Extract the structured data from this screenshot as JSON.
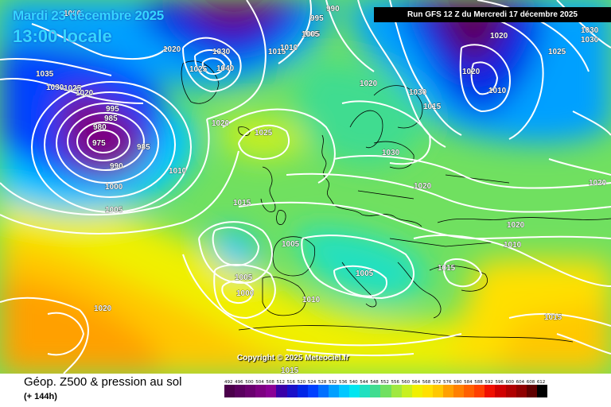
{
  "header": {
    "date_line": "Mardi 23 décembre 2025",
    "time_line": "13:00 locale",
    "run_info": "Run GFS 12 Z du Mercredi 17 décembre 2025"
  },
  "copyright": "Copyright © 2025 Meteociel.fr",
  "footer": {
    "title": "Géop. Z500 & pression au sol",
    "subtitle": "(+ 144h)"
  },
  "color_scale": {
    "labels": [
      "492",
      "496",
      "500",
      "504",
      "508",
      "512",
      "516",
      "520",
      "524",
      "528",
      "532",
      "536",
      "540",
      "544",
      "548",
      "552",
      "556",
      "560",
      "564",
      "568",
      "572",
      "576",
      "580",
      "584",
      "588",
      "592",
      "596",
      "600",
      "604",
      "608",
      "612"
    ],
    "colors": [
      "#4b004b",
      "#5a005f",
      "#6a006f",
      "#7d0082",
      "#8a0096",
      "#3a00a8",
      "#1a10c8",
      "#0025e6",
      "#0040ff",
      "#0070ff",
      "#00a0ff",
      "#00c8ff",
      "#00e6f0",
      "#20e0c0",
      "#40dc90",
      "#70e060",
      "#a0e840",
      "#c8f020",
      "#f0f000",
      "#ffe000",
      "#ffc800",
      "#ffa000",
      "#ff8000",
      "#ff6000",
      "#ff4000",
      "#f01000",
      "#d00000",
      "#b00000",
      "#900000",
      "#600000",
      "#000000"
    ]
  },
  "isobar_labels": [
    "1000",
    "995",
    "990",
    "1005",
    "1035",
    "1030",
    "1025",
    "1020",
    "995",
    "985",
    "980",
    "975",
    "985",
    "990",
    "1000",
    "1005",
    "1010",
    "1025",
    "1020",
    "1030",
    "1040",
    "1015",
    "1010",
    "1020",
    "1025",
    "1005",
    "1020",
    "1030",
    "1030",
    "1015",
    "1020",
    "1010",
    "1030",
    "1025",
    "1020",
    "1030",
    "1020",
    "1020",
    "1020",
    "1015",
    "1005",
    "1005",
    "1000",
    "1010",
    "1005",
    "1015",
    "1015",
    "1020",
    "1015",
    "1010"
  ]
}
